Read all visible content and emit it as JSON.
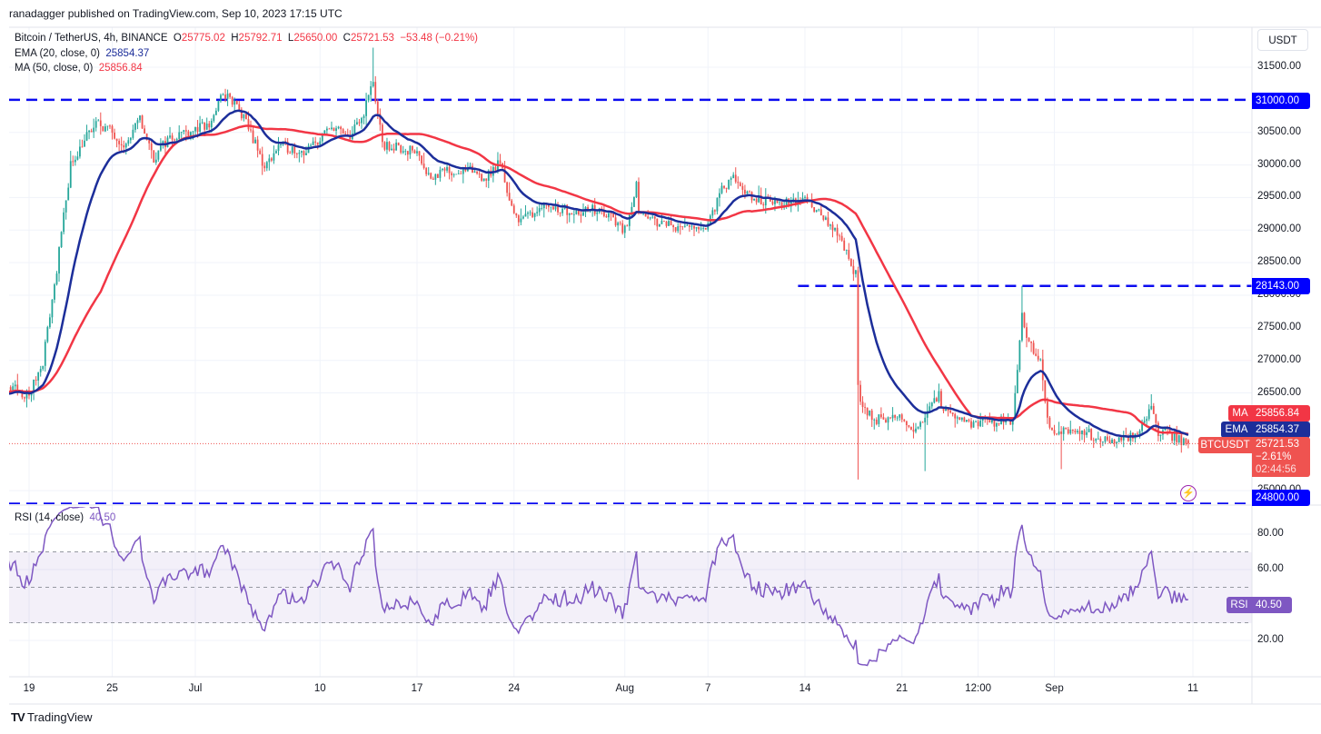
{
  "header": {
    "published": "ranadagger published on TradingView.com, Sep 10, 2023 17:15 UTC",
    "symbol": "Bitcoin / TetherUS, 4h, BINANCE",
    "open_label": "O",
    "open": "25775.02",
    "high_label": "H",
    "high": "25792.71",
    "low_label": "L",
    "low": "25650.00",
    "close_label": "C",
    "close": "25721.53",
    "change": "−53.48 (−0.21%)"
  },
  "indicators": {
    "ema_label": "EMA (20, close, 0)",
    "ema_value": "25854.37",
    "ma_label": "MA (50, close, 0)",
    "ma_value": "25856.84",
    "rsi_label": "RSI (14, close)",
    "rsi_value": "40.50"
  },
  "price_axis": {
    "currency": "USDT",
    "ticks": [
      "31500.00",
      "30500.00",
      "30000.00",
      "29500.00",
      "29000.00",
      "28500.00",
      "28000.00",
      "27500.00",
      "27000.00",
      "26500.00",
      "25000.00"
    ],
    "tick_values": [
      31500,
      30500,
      30000,
      29500,
      29000,
      28500,
      28000,
      27500,
      27000,
      26500,
      25000
    ],
    "level_labels": [
      "31000.00",
      "28143.00",
      "24800.00"
    ],
    "ma_tag": "MA",
    "ma_tag_value": "25856.84",
    "ema_tag": "EMA",
    "ema_tag_value": "25854.37",
    "symbol_tag": "BTCUSDT",
    "last_price": "25721.53",
    "last_change": "−2.61%",
    "countdown": "02:44:56"
  },
  "rsi_axis": {
    "ticks": [
      "80.00",
      "60.00",
      "20.00"
    ],
    "tick_values": [
      80,
      60,
      20
    ],
    "tag": "RSI",
    "tag_value": "40.50"
  },
  "time_axis": {
    "labels": [
      "19",
      "25",
      "Jul",
      "10",
      "17",
      "24",
      "Aug",
      "7",
      "14",
      "21",
      "12:00",
      "Sep",
      "11"
    ],
    "dates": [
      "2023-06-19",
      "2023-06-25",
      "2023-07-01",
      "2023-07-10",
      "2023-07-17",
      "2023-07-24",
      "2023-08-01",
      "2023-08-07",
      "2023-08-14",
      "2023-08-21",
      "2023-08-26T12:00",
      "2023-09-01",
      "2023-09-11"
    ]
  },
  "footer": {
    "brand": "TradingView"
  },
  "colors": {
    "up": "#26a69a",
    "down": "#ef5350",
    "ema": "#1c2e9a",
    "ma": "#f23645",
    "rsi": "#7e57c2",
    "level": "#0c0cf0",
    "axis_blue": "#0000ff"
  },
  "icons": {
    "alert": "lightning-icon",
    "logo": "tradingview-logo"
  },
  "chart_data": {
    "type": "candlestick",
    "interval": "4h",
    "title": "Bitcoin / TetherUS, 4h, BINANCE",
    "ylim": [
      24700,
      31800
    ],
    "price_keypoints": [
      [
        "2023-06-16",
        26500
      ],
      [
        "2023-06-18",
        26550
      ],
      [
        "2023-06-19",
        26450
      ],
      [
        "2023-06-20",
        27000
      ],
      [
        "2023-06-21",
        28400
      ],
      [
        "2023-06-22",
        30000
      ],
      [
        "2023-06-23",
        30400
      ],
      [
        "2023-06-24",
        30650
      ],
      [
        "2023-06-25",
        30500
      ],
      [
        "2023-06-26",
        30300
      ],
      [
        "2023-06-27",
        30700
      ],
      [
        "2023-06-28",
        30100
      ],
      [
        "2023-06-29",
        30400
      ],
      [
        "2023-06-30",
        30500
      ],
      [
        "2023-07-01",
        30550
      ],
      [
        "2023-07-02",
        30600
      ],
      [
        "2023-07-03",
        31100
      ],
      [
        "2023-07-04",
        30900
      ],
      [
        "2023-07-05",
        30500
      ],
      [
        "2023-07-06",
        29950
      ],
      [
        "2023-07-07",
        30300
      ],
      [
        "2023-07-08",
        30250
      ],
      [
        "2023-07-09",
        30200
      ],
      [
        "2023-07-10",
        30400
      ],
      [
        "2023-07-11",
        30600
      ],
      [
        "2023-07-12",
        30400
      ],
      [
        "2023-07-13",
        30700
      ],
      [
        "2023-07-13T20:00",
        31300
      ],
      [
        "2023-07-14",
        31000
      ],
      [
        "2023-07-14T12:00",
        30300
      ],
      [
        "2023-07-16",
        30250
      ],
      [
        "2023-07-17",
        30200
      ],
      [
        "2023-07-18",
        29800
      ],
      [
        "2023-07-19",
        29900
      ],
      [
        "2023-07-21",
        29900
      ],
      [
        "2023-07-22",
        29800
      ],
      [
        "2023-07-23",
        30050
      ],
      [
        "2023-07-24",
        29200
      ],
      [
        "2023-07-25",
        29200
      ],
      [
        "2023-07-26",
        29400
      ],
      [
        "2023-07-28",
        29300
      ],
      [
        "2023-07-30",
        29300
      ],
      [
        "2023-07-31",
        29200
      ],
      [
        "2023-08-01",
        29000
      ],
      [
        "2023-08-01T20:00",
        29700
      ],
      [
        "2023-08-02",
        29200
      ],
      [
        "2023-08-04",
        29100
      ],
      [
        "2023-08-06",
        29000
      ],
      [
        "2023-08-07",
        29100
      ],
      [
        "2023-08-08",
        29600
      ],
      [
        "2023-08-09",
        29800
      ],
      [
        "2023-08-10",
        29500
      ],
      [
        "2023-08-12",
        29400
      ],
      [
        "2023-08-13",
        29400
      ],
      [
        "2023-08-14",
        29500
      ],
      [
        "2023-08-15",
        29300
      ],
      [
        "2023-08-16",
        29000
      ],
      [
        "2023-08-17",
        28700
      ],
      [
        "2023-08-17T16:00",
        28300
      ],
      [
        "2023-08-17T20:00",
        26600
      ],
      [
        "2023-08-18",
        26300
      ],
      [
        "2023-08-19",
        26100
      ],
      [
        "2023-08-21",
        26100
      ],
      [
        "2023-08-22",
        25900
      ],
      [
        "2023-08-23",
        26300
      ],
      [
        "2023-08-23T16:00",
        26500
      ],
      [
        "2023-08-24",
        26200
      ],
      [
        "2023-08-25",
        26050
      ],
      [
        "2023-08-27",
        26050
      ],
      [
        "2023-08-29",
        26100
      ],
      [
        "2023-08-29T16:00",
        27700
      ],
      [
        "2023-08-30",
        27300
      ],
      [
        "2023-08-31",
        27000
      ],
      [
        "2023-08-31T12:00",
        26050
      ],
      [
        "2023-09-01",
        25850
      ],
      [
        "2023-09-03",
        25950
      ],
      [
        "2023-09-04",
        25800
      ],
      [
        "2023-09-06",
        25750
      ],
      [
        "2023-09-07",
        25900
      ],
      [
        "2023-09-08",
        26300
      ],
      [
        "2023-09-08T12:00",
        25900
      ],
      [
        "2023-09-09",
        25900
      ],
      [
        "2023-09-10T16:00",
        25721.53
      ]
    ],
    "wick_extremes": [
      [
        "2023-07-13T20:00",
        31800
      ],
      [
        "2023-08-17T20:00",
        25170
      ],
      [
        "2023-08-22T16:00",
        25300
      ],
      [
        "2023-08-29T16:00",
        28143
      ],
      [
        "2023-09-01T12:00",
        25330
      ],
      [
        "2023-09-08",
        26480
      ]
    ],
    "last_candle": {
      "open": 25775.02,
      "high": 25792.71,
      "low": 25650.0,
      "close": 25721.53
    },
    "series": [
      {
        "name": "EMA (20, close, 0)",
        "last": 25854.37
      },
      {
        "name": "MA (50, close, 0)",
        "last": 25856.84
      },
      {
        "name": "RSI (14, close)",
        "last": 40.5
      }
    ],
    "horizontal_levels": [
      31000,
      28143,
      24800
    ],
    "rsi": {
      "ylim": [
        0,
        100
      ],
      "band": [
        30,
        70
      ],
      "midline": 50
    },
    "grid": true
  }
}
